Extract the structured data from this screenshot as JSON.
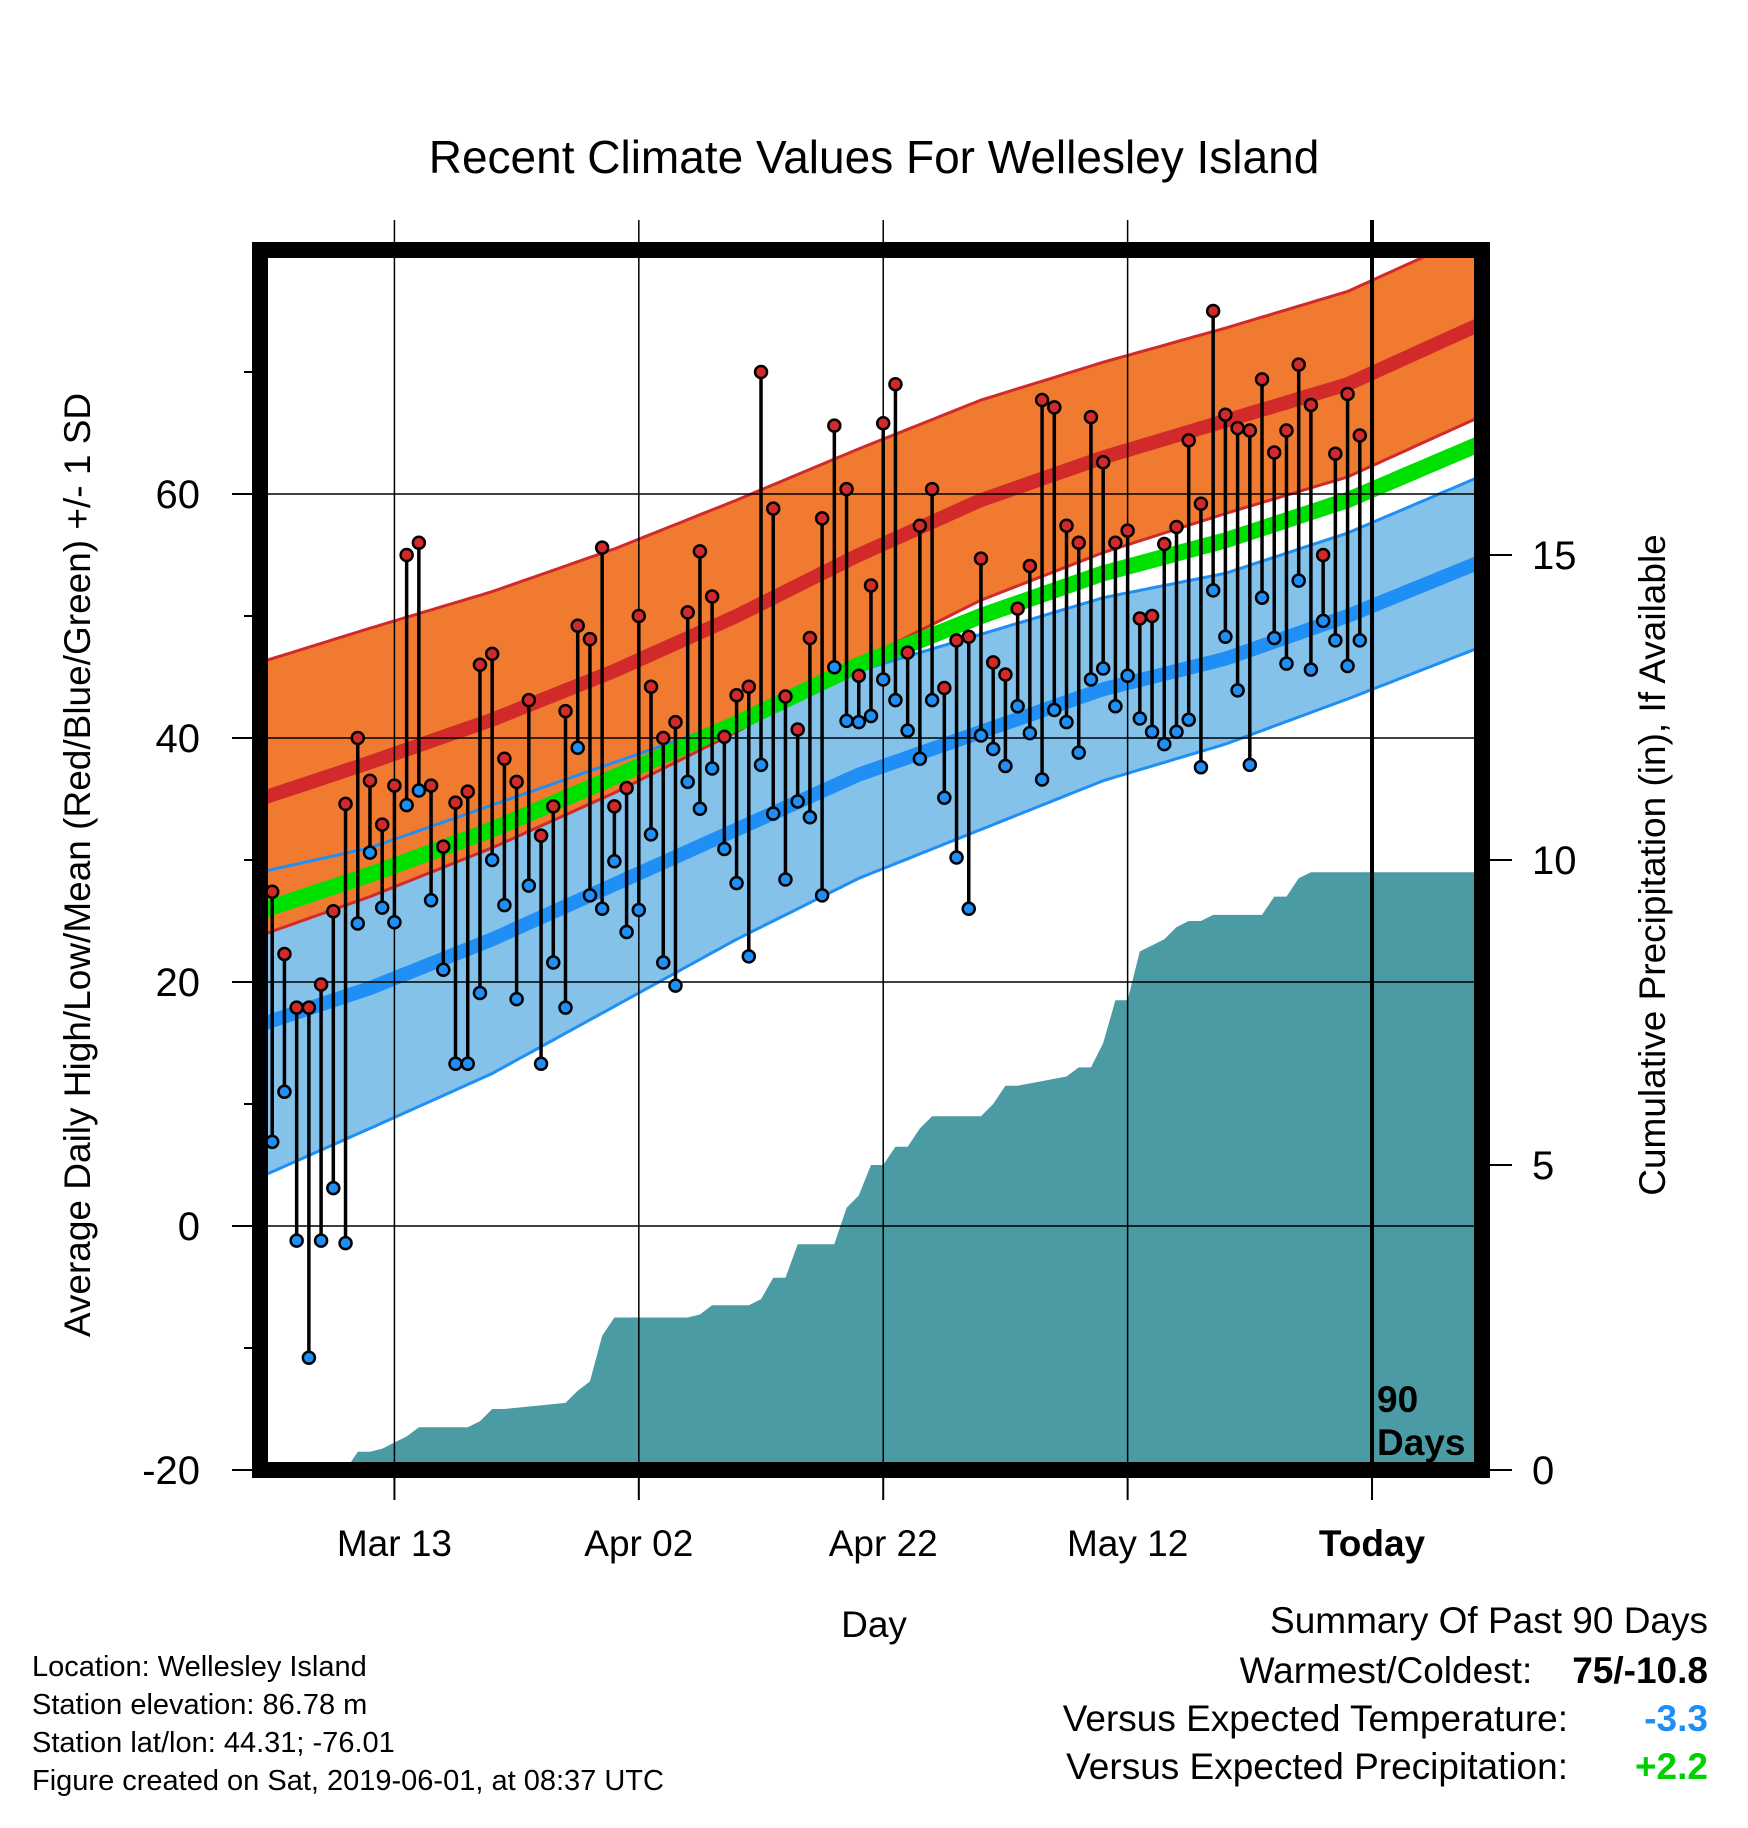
{
  "title": "Recent Climate Values For Wellesley Island",
  "y_label": "Average Daily High/Low/Mean (Red/Blue/Green) +/- 1 SD",
  "y2_label": "Cumulative Precipitation (in), If Available",
  "x_label": "Day",
  "today_marker": {
    "line1": "90",
    "line2": "Days"
  },
  "colors": {
    "high_band": "#f07b30",
    "high_mean": "#d22a2a",
    "high_edge": "#d22a2a",
    "low_band": "#84c2ea",
    "low_mean": "#1f8ff5",
    "low_edge": "#1f8ff5",
    "mean_band": "#00e000",
    "overlap": "#9a1a1a",
    "precip": "#4a9ba3",
    "dot_high": "#d22a2a",
    "dot_low": "#1f8ff5"
  },
  "chart_data": {
    "type": "line",
    "x_range": [
      1,
      101
    ],
    "ylim": [
      -20,
      80
    ],
    "y2lim": [
      0,
      20
    ],
    "y_ticks": [
      -20,
      0,
      20,
      40,
      60
    ],
    "y2_ticks": [
      0,
      5,
      10,
      15
    ],
    "x_ticks": [
      {
        "day": 12,
        "label": "Mar 13"
      },
      {
        "day": 32,
        "label": "Apr 02"
      },
      {
        "day": 52,
        "label": "Apr 22"
      },
      {
        "day": 72,
        "label": "May 12"
      },
      {
        "day": 92,
        "label": "Today"
      }
    ],
    "today_day": 92,
    "normal_high": {
      "x": [
        1,
        10,
        20,
        30,
        40,
        50,
        60,
        70,
        80,
        90,
        101
      ],
      "mean": [
        35,
        38,
        41.5,
        45.5,
        50,
        55,
        59.5,
        63,
        66,
        69,
        74
      ],
      "sd": [
        11.2,
        11,
        10.5,
        10,
        9.5,
        8.7,
        8.2,
        7.8,
        7.6,
        7.6,
        7.6
      ]
    },
    "normal_low": {
      "x": [
        1,
        10,
        20,
        30,
        40,
        50,
        60,
        70,
        80,
        90,
        101
      ],
      "mean": [
        16.5,
        19.5,
        23.5,
        28,
        32.5,
        37,
        40.5,
        44,
        46.5,
        50,
        54.5
      ],
      "sd": [
        12.5,
        11.5,
        11,
        10,
        9,
        8.5,
        8,
        7.5,
        7,
        6.8,
        7
      ]
    },
    "normal_mean": {
      "x": [
        1,
        10,
        20,
        30,
        40,
        50,
        60,
        70,
        80,
        90,
        101
      ],
      "values": [
        25.8,
        28.8,
        32.5,
        36.8,
        41.2,
        46,
        50,
        53.5,
        56.2,
        59.5,
        64.2
      ]
    },
    "daily_high": [
      27.4,
      22.3,
      17.9,
      17.9,
      19.8,
      25.8,
      34.6,
      40,
      36.5,
      32.9,
      36.1,
      55,
      56,
      36.1,
      31.1,
      34.7,
      35.6,
      46,
      46.9,
      38.3,
      36.4,
      43.1,
      32,
      34.4,
      42.2,
      49.2,
      48.1,
      55.6,
      34.4,
      35.9,
      50,
      44.2,
      40,
      41.3,
      50.3,
      55.3,
      51.6,
      40.1,
      43.5,
      44.2,
      70,
      58.8,
      43.4,
      40.7,
      48.2,
      58,
      65.6,
      60.4,
      45.1,
      52.5,
      65.8,
      69,
      47.0,
      57.4,
      60.4,
      44.1,
      48,
      48.3,
      54.7,
      46.2,
      45.2,
      50.6,
      54.1,
      67.7,
      67.1,
      57.4,
      56.0,
      66.3,
      62.6,
      56.0,
      57.0,
      49.8,
      50.0,
      55.9,
      57.3,
      64.4,
      59.2,
      75.0,
      66.5,
      65.4,
      65.2,
      69.4,
      63.4,
      65.2,
      70.6,
      67.3,
      55.0,
      63.3,
      68.2,
      64.8
    ],
    "daily_low": [
      6.9,
      11,
      -1.2,
      -10.8,
      -1.2,
      3.1,
      -1.4,
      24.8,
      30.6,
      26.1,
      24.9,
      34.5,
      35.7,
      26.7,
      21,
      13.3,
      13.3,
      19.1,
      30,
      26.3,
      18.6,
      27.9,
      13.3,
      21.6,
      17.9,
      39.2,
      27.1,
      26,
      29.9,
      24.1,
      25.9,
      32.1,
      21.6,
      19.7,
      36.4,
      34.2,
      37.5,
      30.9,
      28.1,
      22.1,
      37.8,
      33.8,
      28.4,
      34.8,
      33.5,
      27.1,
      45.8,
      41.4,
      41.3,
      41.8,
      44.8,
      43.1,
      40.6,
      38.3,
      43.1,
      35.1,
      30.2,
      26.0,
      40.2,
      39.1,
      37.7,
      42.6,
      40.4,
      36.6,
      42.3,
      41.3,
      38.8,
      44.8,
      45.7,
      42.6,
      45.1,
      41.6,
      40.5,
      39.5,
      40.5,
      41.5,
      37.6,
      52.1,
      48.3,
      43.9,
      37.8,
      51.5,
      48.2,
      46.1,
      52.9,
      45.6,
      49.6,
      48.0,
      45.9,
      48.0
    ],
    "cumulative_precip": {
      "x": [
        1,
        8,
        9,
        10,
        11,
        12,
        13,
        14,
        18,
        19,
        20,
        21,
        26,
        27,
        28,
        29,
        30,
        36,
        37,
        38,
        41,
        42,
        43,
        44,
        45,
        48,
        49,
        50,
        51,
        52,
        53,
        54,
        55,
        56,
        60,
        61,
        62,
        63,
        67,
        68,
        69,
        70,
        71,
        72,
        73,
        74,
        75,
        76,
        77,
        78,
        79,
        83,
        84,
        85,
        86,
        87,
        88,
        89,
        101
      ],
      "values": [
        0,
        0,
        0.3,
        0.3,
        0.35,
        0.45,
        0.55,
        0.7,
        0.7,
        0.8,
        1.0,
        1.0,
        1.1,
        1.3,
        1.45,
        2.2,
        2.5,
        2.5,
        2.55,
        2.7,
        2.7,
        2.8,
        3.15,
        3.15,
        3.7,
        3.7,
        4.3,
        4.5,
        5.0,
        5.0,
        5.3,
        5.3,
        5.6,
        5.8,
        5.8,
        6.0,
        6.3,
        6.3,
        6.45,
        6.6,
        6.6,
        7.0,
        7.7,
        7.7,
        8.5,
        8.6,
        8.7,
        8.9,
        9.0,
        9.0,
        9.1,
        9.1,
        9.4,
        9.4,
        9.7,
        9.8,
        9.8,
        9.8,
        9.8
      ]
    }
  },
  "info": {
    "location": "Location: Wellesley Island",
    "elevation": "Station elevation: 86.78 m",
    "latlon": "Station lat/lon: 44.31; -76.01",
    "created": "Figure created on Sat, 2019-06-01, at 08:37 UTC"
  },
  "summary": {
    "title": "Summary Of Past 90 Days",
    "warmest_label": "Warmest/Coldest:",
    "warmest_value": "75/-10.8",
    "temp_label": "Versus Expected Temperature:",
    "temp_value": "-3.3",
    "temp_color": "#1f8ff5",
    "precip_label": "Versus Expected Precipitation:",
    "precip_value": "+2.2",
    "precip_color": "#00d000"
  }
}
